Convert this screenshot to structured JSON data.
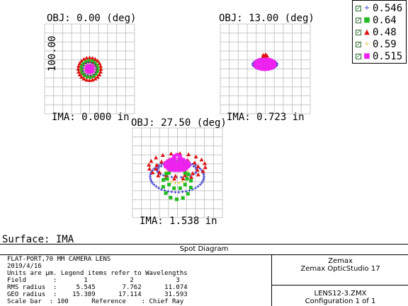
{
  "chart_data": {
    "type": "scatter",
    "title": "Spot Diagram",
    "surface_label": "Surface: IMA",
    "scale_axis_label": "100.00",
    "legend": {
      "position": "top-right",
      "entries": [
        {
          "wavelength": "0.546",
          "marker": "plus",
          "color": "#3333cc"
        },
        {
          "wavelength": "0.64",
          "marker": "square",
          "color": "#22bb22"
        },
        {
          "wavelength": "0.48",
          "marker": "triangle",
          "color": "#dd1111"
        },
        {
          "wavelength": "0.59",
          "marker": "plus",
          "color": "#ddcc44"
        },
        {
          "wavelength": "0.515",
          "marker": "square",
          "color": "#ee22ee"
        }
      ]
    },
    "plots": [
      {
        "obj_label": "OBJ: 0.00 (deg)",
        "ima_label": "IMA: 0.000 in"
      },
      {
        "obj_label": "OBJ: 13.00 (deg)",
        "ima_label": "IMA: 0.723 in"
      },
      {
        "obj_label": "OBJ: 27.50 (deg)",
        "ima_label": "IMA: 1.538 in"
      }
    ],
    "field_table": {
      "field": [
        "1",
        "2",
        "3"
      ],
      "rms_radius": [
        "5.545",
        "7.762",
        "11.074"
      ],
      "geo_radius": [
        "15.389",
        "17.114",
        "31.593"
      ]
    },
    "grid": true
  },
  "footer": {
    "title": "Spot Diagram",
    "lens_name": "FLAT-PORT,70 MM CAMERA LENS",
    "date": "2019/4/16",
    "units_note": "Units are μm. Legend items refer to Wavelengths",
    "field_row": "Field       :       1           2           3",
    "rms_row": "RMS radius  :     5.545       7.762      11.074",
    "geo_row": "GEO radius  :    15.389      17.114      31.593",
    "scale_row": "Scale bar  : 100      Reference    : Chief Ray",
    "company": "Zemax",
    "software": "Zemax OpticStudio 17",
    "file": "LENS12-3.ZMX",
    "configuration": "Configuration 1 of 1"
  }
}
